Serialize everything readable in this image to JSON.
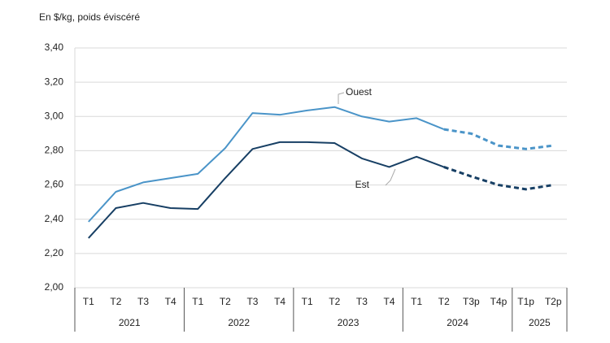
{
  "chart_data": {
    "type": "line",
    "y_axis_label": "En $/kg, poids éviscéré",
    "groups": [
      {
        "label": "2021",
        "categories": [
          "T1",
          "T2",
          "T3",
          "T4"
        ]
      },
      {
        "label": "2022",
        "categories": [
          "T1",
          "T2",
          "T3",
          "T4"
        ]
      },
      {
        "label": "2023",
        "categories": [
          "T1",
          "T2",
          "T3",
          "T4"
        ]
      },
      {
        "label": "2024",
        "categories": [
          "T1",
          "T2",
          "T3p",
          "T4p"
        ]
      },
      {
        "label": "2025",
        "categories": [
          "T1p",
          "T2p"
        ]
      }
    ],
    "series": [
      {
        "name": "Ouest",
        "color": "#4a94c8",
        "dash_from_index": 13,
        "values": [
          2.385,
          2.56,
          2.615,
          2.64,
          2.665,
          2.815,
          3.02,
          3.01,
          3.035,
          3.055,
          3.0,
          2.97,
          2.99,
          2.925,
          2.9,
          2.83,
          2.81,
          2.83
        ]
      },
      {
        "name": "Est",
        "color": "#173f64",
        "dash_from_index": 13,
        "values": [
          2.29,
          2.465,
          2.495,
          2.465,
          2.46,
          2.64,
          2.81,
          2.85,
          2.85,
          2.845,
          2.755,
          2.705,
          2.765,
          2.705,
          2.65,
          2.6,
          2.575,
          2.6
        ]
      }
    ],
    "ylim": [
      2.0,
      3.4
    ],
    "yticks": [
      {
        "value": 2.0,
        "label": "2,00"
      },
      {
        "value": 2.2,
        "label": "2,20"
      },
      {
        "value": 2.4,
        "label": "2,40"
      },
      {
        "value": 2.6,
        "label": "2,60"
      },
      {
        "value": 2.8,
        "label": "2,80"
      },
      {
        "value": 3.0,
        "label": "3,00"
      },
      {
        "value": 3.2,
        "label": "3,20"
      },
      {
        "value": 3.4,
        "label": "3,40"
      }
    ],
    "grid": true
  }
}
